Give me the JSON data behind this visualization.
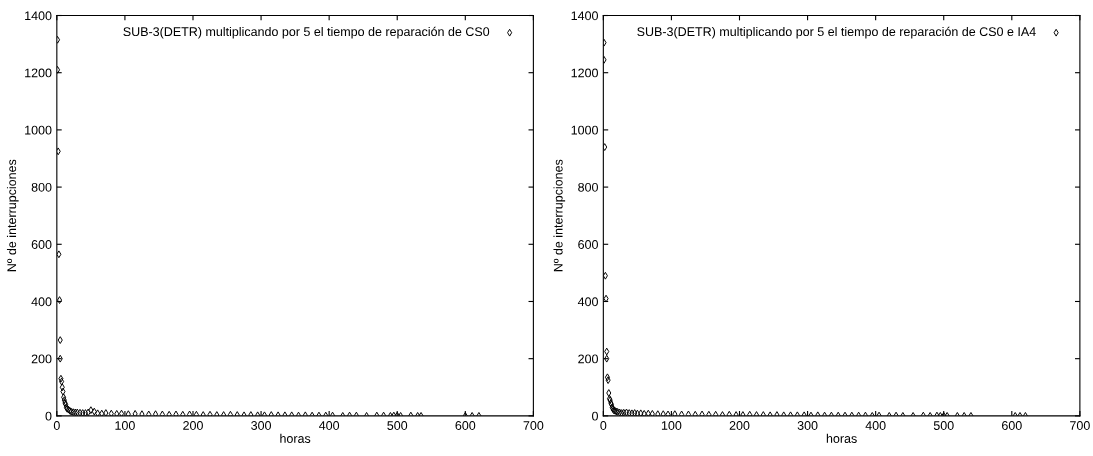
{
  "chart_data": [
    {
      "type": "scatter",
      "xlabel": "horas",
      "ylabel": "Nº de interrupciones",
      "xlim": [
        0,
        700
      ],
      "ylim": [
        0,
        1400
      ],
      "xticks": [
        0,
        100,
        200,
        300,
        400,
        500,
        600,
        700
      ],
      "yticks": [
        0,
        200,
        400,
        600,
        800,
        1000,
        1200,
        1400
      ],
      "legend": "top right",
      "marker": "diamond",
      "grid": false,
      "series": [
        {
          "name": "SUB-3(DETR) multiplicando por 5 el tiempo de reparación de CS0",
          "color": "#000000",
          "x": [
            1,
            1,
            2,
            3,
            4,
            5,
            5,
            6,
            7,
            8,
            9,
            10,
            11,
            12,
            13,
            14,
            15,
            17,
            19,
            21,
            24,
            27,
            30,
            34,
            38,
            42,
            46,
            50,
            55,
            60,
            66,
            72,
            80,
            88,
            95,
            105,
            115,
            125,
            135,
            145,
            155,
            165,
            175,
            185,
            195,
            205,
            215,
            225,
            235,
            245,
            255,
            265,
            275,
            285,
            295,
            305,
            315,
            325,
            335,
            345,
            355,
            365,
            375,
            385,
            395,
            405,
            420,
            430,
            440,
            455,
            470,
            480,
            490,
            495,
            500,
            505,
            520,
            530,
            535,
            600,
            610,
            620
          ],
          "values": [
            1315,
            1210,
            925,
            565,
            405,
            265,
            200,
            130,
            120,
            100,
            85,
            65,
            55,
            45,
            40,
            30,
            25,
            22,
            18,
            15,
            13,
            12,
            12,
            11,
            10,
            10,
            12,
            20,
            15,
            9,
            8,
            10,
            8,
            7,
            8,
            6,
            7,
            6,
            5,
            6,
            5,
            4,
            5,
            4,
            5,
            4,
            3,
            4,
            3,
            3,
            4,
            3,
            2,
            3,
            2,
            2,
            3,
            2,
            2,
            2,
            1,
            2,
            1,
            1,
            1,
            1,
            0,
            1,
            1,
            0,
            1,
            1,
            0,
            1,
            1,
            0,
            1,
            0,
            0,
            0,
            0,
            0
          ]
        }
      ]
    },
    {
      "type": "scatter",
      "xlabel": "horas",
      "ylabel": "Nº de interrupciones",
      "xlim": [
        0,
        700
      ],
      "ylim": [
        0,
        1400
      ],
      "xticks": [
        0,
        100,
        200,
        300,
        400,
        500,
        600,
        700
      ],
      "yticks": [
        0,
        200,
        400,
        600,
        800,
        1000,
        1200,
        1400
      ],
      "legend": "top right",
      "marker": "diamond",
      "grid": false,
      "series": [
        {
          "name": "SUB-3(DETR) multiplicando por 5 el tiempo de reparación de CS0 e IA4",
          "color": "#000000",
          "x": [
            1,
            1,
            2,
            3,
            4,
            5,
            5,
            6,
            7,
            8,
            9,
            10,
            11,
            12,
            13,
            14,
            15,
            17,
            19,
            21,
            24,
            27,
            30,
            34,
            38,
            42,
            46,
            50,
            55,
            60,
            66,
            72,
            80,
            88,
            95,
            105,
            115,
            125,
            135,
            145,
            155,
            165,
            175,
            185,
            195,
            205,
            215,
            225,
            235,
            245,
            255,
            265,
            275,
            285,
            295,
            305,
            315,
            325,
            335,
            345,
            355,
            365,
            375,
            385,
            395,
            405,
            420,
            430,
            440,
            455,
            470,
            480,
            490,
            495,
            500,
            505,
            520,
            530,
            540,
            605,
            612,
            620
          ],
          "values": [
            1305,
            1245,
            940,
            490,
            410,
            225,
            200,
            135,
            125,
            80,
            60,
            55,
            45,
            40,
            30,
            25,
            20,
            18,
            15,
            14,
            12,
            10,
            11,
            12,
            10,
            9,
            10,
            8,
            9,
            7,
            8,
            7,
            6,
            6,
            5,
            6,
            5,
            5,
            4,
            5,
            4,
            4,
            3,
            4,
            3,
            3,
            4,
            3,
            3,
            2,
            3,
            2,
            2,
            2,
            2,
            1,
            2,
            1,
            1,
            1,
            1,
            1,
            1,
            1,
            0,
            1,
            0,
            1,
            0,
            0,
            1,
            0,
            1,
            0,
            0,
            0,
            0,
            0,
            0,
            0,
            0,
            0
          ]
        }
      ]
    }
  ]
}
